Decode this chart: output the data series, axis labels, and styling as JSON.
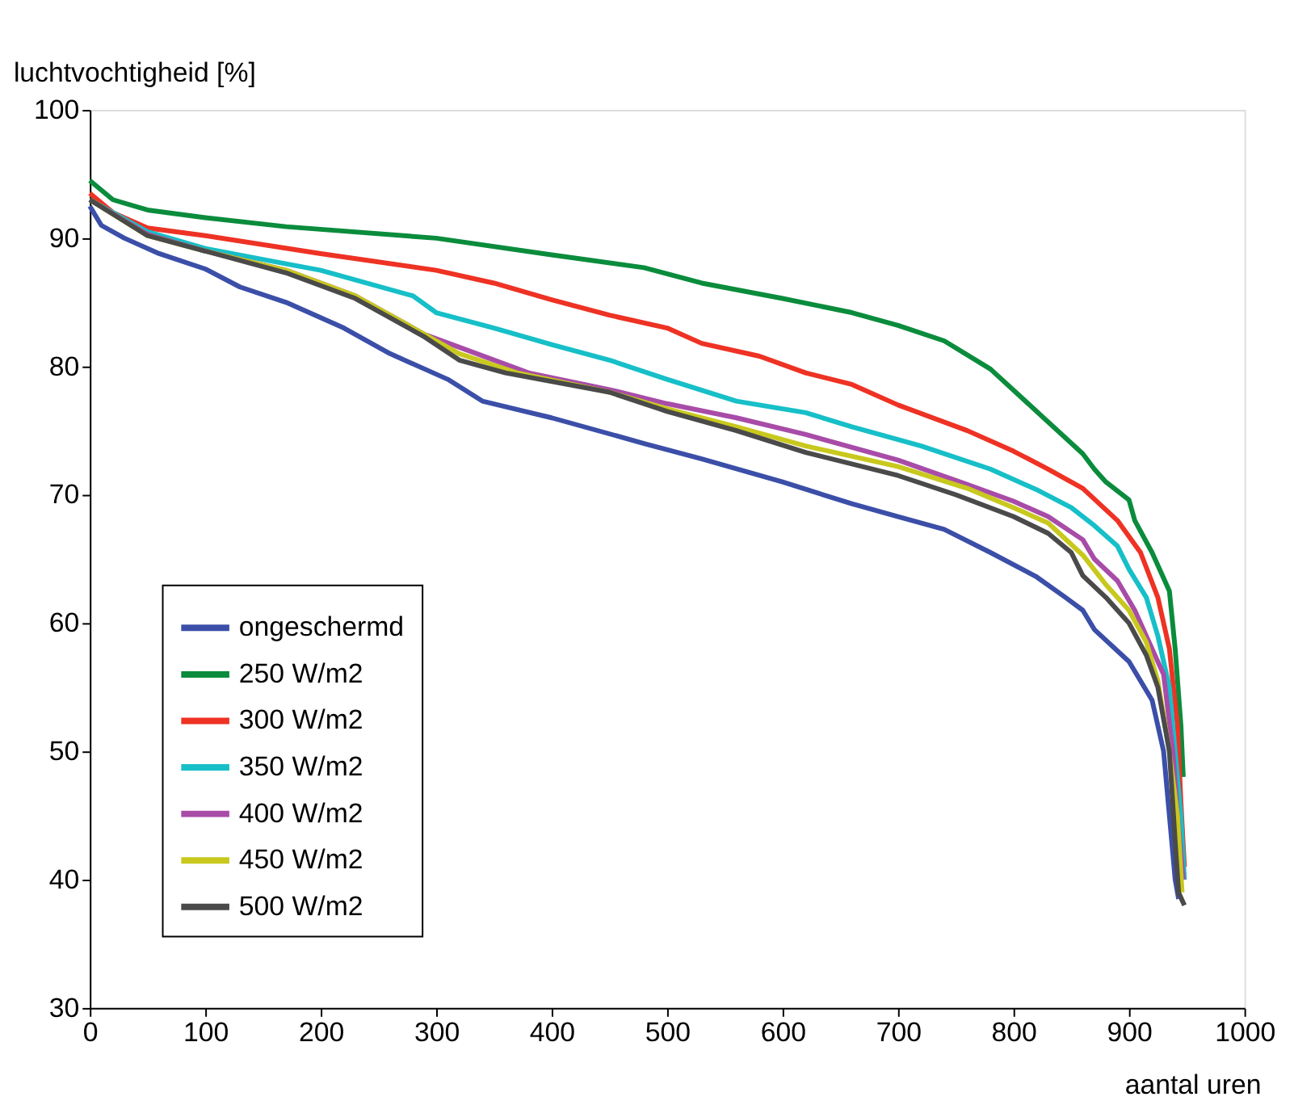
{
  "chart_data": {
    "type": "line",
    "xlabel": "aantal uren",
    "ylabel": "luchtvochtigheid [%]",
    "xlim": [
      0,
      1000
    ],
    "xticks": [
      0,
      100,
      200,
      300,
      400,
      500,
      600,
      700,
      800,
      900,
      1000
    ],
    "ylim": [
      30,
      100
    ],
    "yticks": [
      30,
      40,
      50,
      60,
      70,
      80,
      90,
      100
    ],
    "grid": false,
    "legend": "bottom left",
    "line_style": "solid",
    "marker": "none",
    "series": [
      {
        "name": "ongeschermd",
        "color": "#3b4fa8",
        "x": [
          0,
          10,
          30,
          60,
          100,
          130,
          170,
          220,
          260,
          290,
          310,
          340,
          400,
          480,
          530,
          600,
          660,
          700,
          740,
          780,
          820,
          845,
          860,
          870,
          900,
          920,
          930,
          935,
          940,
          943
        ],
        "values": [
          92.5,
          91,
          90,
          88.8,
          87.6,
          86.2,
          85,
          83,
          81,
          79.8,
          79,
          77.3,
          76,
          74,
          72.8,
          71,
          69.3,
          68.3,
          67.3,
          65.5,
          63.6,
          62,
          61,
          59.5,
          57,
          54,
          50,
          45,
          40,
          38.5
        ]
      },
      {
        "name": "250 W/m2",
        "color": "#0a8c3c",
        "x": [
          0,
          20,
          50,
          100,
          170,
          300,
          400,
          480,
          530,
          600,
          660,
          700,
          740,
          780,
          820,
          860,
          870,
          880,
          900,
          905,
          920,
          930,
          935,
          940,
          945,
          947
        ],
        "values": [
          94.5,
          93,
          92.2,
          91.6,
          90.9,
          90,
          88.7,
          87.7,
          86.5,
          85.3,
          84.2,
          83.2,
          82,
          79.8,
          76.5,
          73.2,
          72,
          71,
          69.6,
          68,
          65.5,
          63.5,
          62.5,
          58,
          52,
          48
        ]
      },
      {
        "name": "300 W/m2",
        "color": "#ee3224",
        "x": [
          0,
          20,
          50,
          100,
          200,
          300,
          350,
          400,
          450,
          500,
          530,
          580,
          620,
          660,
          700,
          760,
          800,
          830,
          860,
          890,
          910,
          925,
          935,
          942,
          945,
          948
        ],
        "values": [
          93.5,
          92,
          90.8,
          90.2,
          88.8,
          87.5,
          86.5,
          85.2,
          84,
          83,
          81.8,
          80.8,
          79.5,
          78.6,
          77,
          75,
          73.4,
          72,
          70.5,
          68,
          65.5,
          62,
          58,
          52,
          46,
          41
        ]
      },
      {
        "name": "350 W/m2",
        "color": "#17bfc8",
        "x": [
          0,
          50,
          100,
          170,
          200,
          280,
          300,
          350,
          400,
          450,
          500,
          560,
          620,
          660,
          720,
          780,
          820,
          850,
          870,
          890,
          900,
          915,
          925,
          935,
          940,
          945,
          948
        ],
        "values": [
          93,
          90.5,
          89.2,
          88,
          87.5,
          85.5,
          84.2,
          83,
          81.7,
          80.5,
          79,
          77.3,
          76.4,
          75.3,
          73.8,
          72,
          70.4,
          69,
          67.6,
          66,
          64.2,
          62,
          59,
          55,
          50,
          45,
          40
        ]
      },
      {
        "name": "400 W/m2",
        "color": "#a84ca8",
        "x": [
          0,
          50,
          100,
          170,
          230,
          290,
          320,
          380,
          450,
          500,
          560,
          620,
          700,
          760,
          800,
          830,
          860,
          870,
          890,
          905,
          920,
          930,
          938,
          943,
          947
        ],
        "values": [
          93,
          90.3,
          89,
          87.5,
          85.5,
          82.5,
          81.5,
          79.5,
          78.2,
          77.1,
          76,
          74.7,
          72.7,
          70.8,
          69.5,
          68.3,
          66.5,
          65,
          63.3,
          61,
          58,
          56,
          50,
          44,
          40
        ]
      },
      {
        "name": "450 W/m2",
        "color": "#c8c81e",
        "x": [
          0,
          50,
          100,
          170,
          230,
          290,
          320,
          370,
          450,
          500,
          560,
          620,
          700,
          760,
          800,
          830,
          860,
          880,
          900,
          915,
          925,
          935,
          942,
          946
        ],
        "values": [
          93,
          90.2,
          89,
          87.5,
          85.5,
          82.5,
          81,
          79.5,
          78,
          76.7,
          75.3,
          73.8,
          72.2,
          70.5,
          69,
          67.8,
          65.3,
          63,
          61,
          58.5,
          55.5,
          50,
          45,
          39
        ]
      },
      {
        "name": "500 W/m2",
        "color": "#4a4a4a",
        "x": [
          0,
          50,
          100,
          170,
          230,
          290,
          320,
          360,
          450,
          500,
          560,
          620,
          700,
          750,
          800,
          830,
          850,
          860,
          880,
          900,
          915,
          925,
          935,
          940,
          943,
          948
        ],
        "values": [
          93,
          90.2,
          89,
          87.3,
          85.3,
          82.3,
          80.5,
          79.5,
          78,
          76.5,
          75,
          73.3,
          71.5,
          70,
          68.3,
          67,
          65.5,
          63.7,
          62,
          60,
          57.5,
          55,
          50,
          43,
          39,
          38
        ]
      }
    ]
  }
}
